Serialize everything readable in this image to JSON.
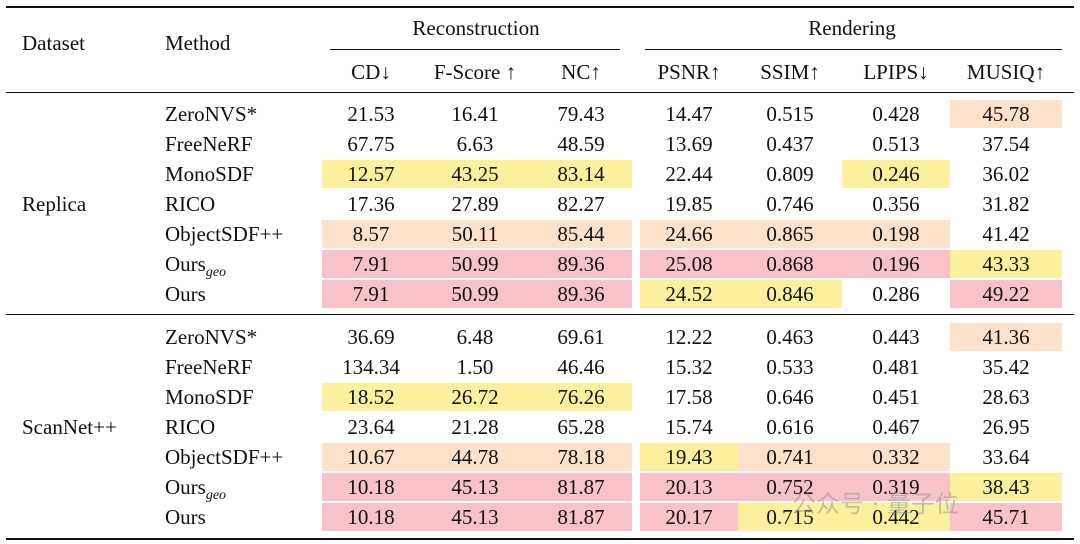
{
  "header": {
    "dataset": "Dataset",
    "method": "Method",
    "groups": [
      "Reconstruction",
      "Rendering"
    ],
    "columns": [
      "CD↓",
      "F-Score ↑",
      "NC↑",
      "PSNR↑",
      "SSIM↑",
      "LPIPS↓",
      "MUSIQ↑"
    ]
  },
  "sections": [
    {
      "name": "Replica",
      "rows": [
        {
          "method": "ZeroNVS*",
          "values": [
            "21.53",
            "16.41",
            "79.43",
            "14.47",
            "0.515",
            "0.428",
            "45.78"
          ],
          "colors": [
            null,
            null,
            null,
            null,
            null,
            null,
            "#fde1cb"
          ]
        },
        {
          "method": "FreeNeRF",
          "values": [
            "67.75",
            "6.63",
            "48.59",
            "13.69",
            "0.437",
            "0.513",
            "37.54"
          ],
          "colors": [
            null,
            null,
            null,
            null,
            null,
            null,
            null
          ]
        },
        {
          "method": "MonoSDF",
          "values": [
            "12.57",
            "43.25",
            "83.14",
            "22.44",
            "0.809",
            "0.246",
            "36.02"
          ],
          "colors": [
            "#fbf19c",
            "#fbf19c",
            "#fbf19c",
            null,
            null,
            "#fbf19c",
            null
          ]
        },
        {
          "method": "RICO",
          "values": [
            "17.36",
            "27.89",
            "82.27",
            "19.85",
            "0.746",
            "0.356",
            "31.82"
          ],
          "colors": [
            null,
            null,
            null,
            null,
            null,
            null,
            null
          ]
        },
        {
          "method": "ObjectSDF++",
          "values": [
            "8.57",
            "50.11",
            "85.44",
            "24.66",
            "0.865",
            "0.198",
            "41.42"
          ],
          "colors": [
            "#fde1cb",
            "#fde1cb",
            "#fde1cb",
            "#fde1cb",
            "#fde1cb",
            "#fde1cb",
            null
          ]
        },
        {
          "method": "Ours",
          "method_sub": "geo",
          "values": [
            "7.91",
            "50.99",
            "89.36",
            "25.08",
            "0.868",
            "0.196",
            "43.33"
          ],
          "colors": [
            "#f9c2c9",
            "#f9c2c9",
            "#f9c2c9",
            "#f9c2c9",
            "#f9c2c9",
            "#f9c2c9",
            "#fbf19c"
          ]
        },
        {
          "method": "Ours",
          "values": [
            "7.91",
            "50.99",
            "89.36",
            "24.52",
            "0.846",
            "0.286",
            "49.22"
          ],
          "colors": [
            "#f9c2c9",
            "#f9c2c9",
            "#f9c2c9",
            "#fbf19c",
            "#fbf19c",
            null,
            "#f9c2c9"
          ]
        }
      ]
    },
    {
      "name": "ScanNet++",
      "rows": [
        {
          "method": "ZeroNVS*",
          "values": [
            "36.69",
            "6.48",
            "69.61",
            "12.22",
            "0.463",
            "0.443",
            "41.36"
          ],
          "colors": [
            null,
            null,
            null,
            null,
            null,
            null,
            "#fde1cb"
          ]
        },
        {
          "method": "FreeNeRF",
          "values": [
            "134.34",
            "1.50",
            "46.46",
            "15.32",
            "0.533",
            "0.481",
            "35.42"
          ],
          "colors": [
            null,
            null,
            null,
            null,
            null,
            null,
            null
          ]
        },
        {
          "method": "MonoSDF",
          "values": [
            "18.52",
            "26.72",
            "76.26",
            "17.58",
            "0.646",
            "0.451",
            "28.63"
          ],
          "colors": [
            "#fbf19c",
            "#fbf19c",
            "#fbf19c",
            null,
            null,
            null,
            null
          ]
        },
        {
          "method": "RICO",
          "values": [
            "23.64",
            "21.28",
            "65.28",
            "15.74",
            "0.616",
            "0.467",
            "26.95"
          ],
          "colors": [
            null,
            null,
            null,
            null,
            null,
            null,
            null
          ]
        },
        {
          "method": "ObjectSDF++",
          "values": [
            "10.67",
            "44.78",
            "78.18",
            "19.43",
            "0.741",
            "0.332",
            "33.64"
          ],
          "colors": [
            "#fde1cb",
            "#fde1cb",
            "#fde1cb",
            "#fbf19c",
            "#fde1cb",
            "#fde1cb",
            null
          ]
        },
        {
          "method": "Ours",
          "method_sub": "geo",
          "values": [
            "10.18",
            "45.13",
            "81.87",
            "20.13",
            "0.752",
            "0.319",
            "38.43"
          ],
          "colors": [
            "#f9c2c9",
            "#f9c2c9",
            "#f9c2c9",
            "#f9c2c9",
            "#f9c2c9",
            "#f9c2c9",
            "#fbf19c"
          ]
        },
        {
          "method": "Ours",
          "values": [
            "10.18",
            "45.13",
            "81.87",
            "20.17",
            "0.715",
            "0.442",
            "45.71"
          ],
          "colors": [
            "#f9c2c9",
            "#f9c2c9",
            "#f9c2c9",
            "#f9c2c9",
            "#fbf19c",
            "#fbf19c",
            "#f9c2c9"
          ]
        }
      ]
    }
  ],
  "watermark": "公众号 · 量子位"
}
